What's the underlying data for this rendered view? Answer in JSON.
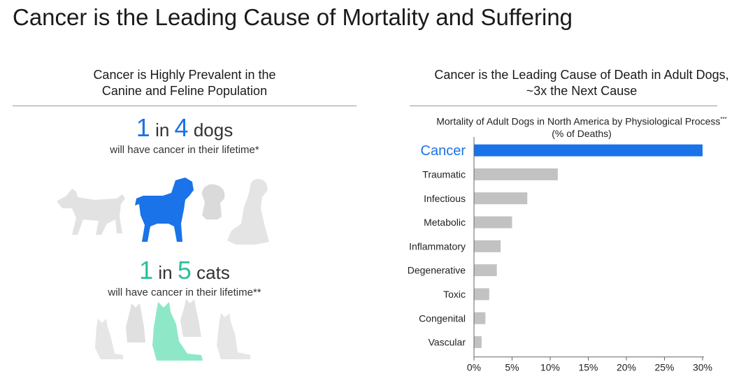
{
  "slide": {
    "title": "Cancer is the Leading Cause of Mortality and Suffering"
  },
  "left_panel": {
    "heading_line1": "Cancer is Highly Prevalent in the",
    "heading_line2": "Canine and Feline Population",
    "dogs_stat": {
      "num1": "1",
      "word_in": "in",
      "num2": "4",
      "noun": "dogs",
      "subtext": "will have cancer in their lifetime*"
    },
    "cats_stat": {
      "num1": "1",
      "word_in": "in",
      "num2": "5",
      "noun": "cats",
      "subtext": "will have cancer in their lifetime**"
    },
    "colors": {
      "dog_highlight": "#1a73e8",
      "cat_highlight": "#8ee8c8",
      "silhouette_grey": "#e2e2e2"
    }
  },
  "right_panel": {
    "heading_line1": "Cancer is the Leading Cause of Death in Adult Dogs,",
    "heading_line2": "~3x the Next Cause"
  },
  "chart_data": {
    "type": "bar",
    "orientation": "horizontal",
    "title": "Mortality of Adult Dogs in North America by Physiological Process",
    "title_footnote": "***",
    "subtitle": "(% of Deaths)",
    "categories": [
      "Cancer",
      "Traumatic",
      "Infectious",
      "Metabolic",
      "Inflammatory",
      "Degenerative",
      "Toxic",
      "Congenital",
      "Vascular"
    ],
    "values": [
      30,
      11,
      7,
      5,
      3.5,
      3,
      2,
      1.5,
      1
    ],
    "xlim": [
      0,
      30
    ],
    "xticks": [
      "0%",
      "5%",
      "10%",
      "15%",
      "20%",
      "25%",
      "30%"
    ],
    "xtick_values": [
      0,
      5,
      10,
      15,
      20,
      25,
      30
    ],
    "highlight_category": "Cancer",
    "colors": {
      "highlight": "#1a73e8",
      "default": "#c2c2c2",
      "axis": "#666666"
    },
    "grid": false
  }
}
